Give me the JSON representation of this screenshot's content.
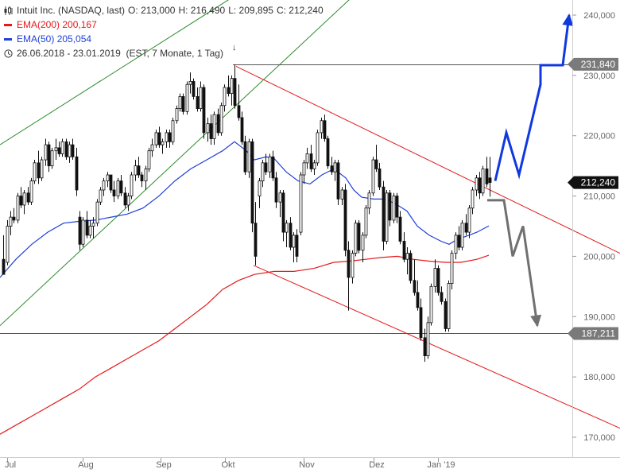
{
  "legend": {
    "title": "Intuit Inc. (NASDAQ, last)",
    "open_label": "O:",
    "open": "213,000",
    "high_label": "H:",
    "high": "216,490",
    "low_label": "L:",
    "low": "209,895",
    "close_label": "C:",
    "close": "212,240",
    "ema200_label": "EMA(200)",
    "ema200_value": "200,167",
    "ema50_label": "EMA(50)",
    "ema50_value": "205,054",
    "range": "26.06.2018 - 23.01.2019",
    "range_note": "(EST, 7 Monate, 1 Tag)",
    "range_marker": "↓",
    "chart_icon": "candlestick-icon",
    "clock_icon": "clock-icon"
  },
  "colors": {
    "ema200": "#e31a1c",
    "ema50": "#1f3fd8",
    "channel_upper": "#2e8b2e",
    "channel_down": "#e31a1c",
    "scenario_bull": "#1038e0",
    "scenario_bear": "#707070",
    "level_line": "#555555",
    "badge_dark": "#111111",
    "badge_gray": "#7a7a7a"
  },
  "chart_data": {
    "type": "candlestick",
    "title": "Intuit Inc. (NASDAQ, last)",
    "ylim": [
      165000,
      243000
    ],
    "yticks": [
      170000,
      180000,
      190000,
      200000,
      210000,
      220000,
      230000,
      240000
    ],
    "ytick_labels": [
      "170,000",
      "180,000",
      "190,000",
      "200,000",
      "210,000",
      "220,000",
      "230,000",
      "240,000"
    ],
    "xlim": [
      0,
      780
    ],
    "xticks": [
      {
        "label": "Jul",
        "x": 13
      },
      {
        "label": "Aug",
        "x": 108
      },
      {
        "label": "Sep",
        "x": 206
      },
      {
        "label": "Okt",
        "x": 287
      },
      {
        "label": "Nov",
        "x": 386
      },
      {
        "label": "Dez",
        "x": 474
      },
      {
        "label": "Jan '19",
        "x": 555
      }
    ],
    "price_badges": [
      {
        "label": "231,840",
        "value": 231840,
        "style": "gray"
      },
      {
        "label": "212,240",
        "value": 212240,
        "style": "dark"
      },
      {
        "label": "187,211",
        "value": 187211,
        "style": "gray"
      }
    ],
    "horizontal_levels": [
      {
        "value": 231840,
        "x_start": 293
      },
      {
        "value": 187211,
        "x_start": 0
      }
    ],
    "candles": [
      [
        4,
        199.5,
        203.5,
        198.0,
        197.0
      ],
      [
        9,
        199.0,
        206.0,
        198.5,
        205.0
      ],
      [
        13,
        205.0,
        207.5,
        203.5,
        206.5
      ],
      [
        17,
        206.5,
        208.0,
        205.5,
        206.0
      ],
      [
        22,
        206.0,
        210.5,
        205.5,
        210.0
      ],
      [
        26,
        210.0,
        211.5,
        208.0,
        208.5
      ],
      [
        30,
        208.5,
        211.0,
        207.0,
        210.5
      ],
      [
        35,
        210.5,
        211.5,
        208.5,
        209.0
      ],
      [
        39,
        209.0,
        213.0,
        208.5,
        212.5
      ],
      [
        43,
        212.5,
        216.0,
        212.0,
        215.5
      ],
      [
        48,
        215.5,
        217.5,
        212.0,
        213.0
      ],
      [
        52,
        213.0,
        216.5,
        212.5,
        216.0
      ],
      [
        57,
        216.0,
        219.5,
        215.0,
        218.5
      ],
      [
        61,
        218.5,
        219.0,
        214.0,
        215.0
      ],
      [
        65,
        215.0,
        218.0,
        214.5,
        217.5
      ],
      [
        70,
        217.5,
        219.5,
        216.0,
        218.0
      ],
      [
        74,
        218.0,
        219.0,
        216.5,
        217.0
      ],
      [
        78,
        217.0,
        219.5,
        216.5,
        219.0
      ],
      [
        83,
        219.0,
        219.5,
        216.0,
        216.5
      ],
      [
        87,
        216.5,
        219.0,
        215.5,
        218.5
      ],
      [
        91,
        218.5,
        219.5,
        216.0,
        216.5
      ],
      [
        96,
        216.5,
        218.0,
        210.0,
        211.0
      ],
      [
        100,
        206.5,
        207.5,
        201.0,
        202.0
      ],
      [
        104,
        202.0,
        206.5,
        201.5,
        206.0
      ],
      [
        109,
        206.0,
        207.5,
        203.0,
        203.5
      ],
      [
        113,
        203.5,
        206.0,
        203.0,
        205.0
      ],
      [
        117,
        205.0,
        206.5,
        203.0,
        205.5
      ],
      [
        122,
        205.5,
        209.5,
        205.0,
        209.0
      ],
      [
        126,
        209.0,
        211.5,
        208.5,
        211.0
      ],
      [
        130,
        211.0,
        213.0,
        210.0,
        212.5
      ],
      [
        135,
        212.5,
        214.0,
        211.5,
        213.5
      ],
      [
        139,
        213.5,
        213.5,
        210.5,
        211.0
      ],
      [
        143,
        211.0,
        212.5,
        209.0,
        210.0
      ],
      [
        148,
        210.0,
        213.0,
        209.5,
        212.5
      ],
      [
        152,
        212.5,
        213.5,
        210.0,
        210.5
      ],
      [
        157,
        210.5,
        211.5,
        208.0,
        208.5
      ],
      [
        161,
        208.5,
        210.5,
        207.5,
        210.0
      ],
      [
        165,
        210.0,
        214.0,
        209.5,
        213.5
      ],
      [
        170,
        213.5,
        216.0,
        212.5,
        215.0
      ],
      [
        174,
        215.0,
        216.5,
        213.0,
        213.5
      ],
      [
        178,
        213.5,
        214.0,
        211.5,
        212.5
      ],
      [
        183,
        212.5,
        215.0,
        211.0,
        214.5
      ],
      [
        187,
        214.5,
        218.0,
        214.0,
        217.5
      ],
      [
        191,
        217.5,
        219.5,
        216.5,
        218.5
      ],
      [
        196,
        218.5,
        221.0,
        218.0,
        220.5
      ],
      [
        200,
        220.5,
        221.5,
        218.0,
        218.5
      ],
      [
        204,
        218.5,
        219.5,
        217.0,
        219.0
      ],
      [
        209,
        219.0,
        221.0,
        218.0,
        220.5
      ],
      [
        213,
        220.5,
        221.0,
        218.0,
        219.0
      ],
      [
        217,
        219.0,
        223.0,
        218.5,
        222.5
      ],
      [
        222,
        222.5,
        225.0,
        222.0,
        224.5
      ],
      [
        226,
        224.5,
        227.0,
        224.0,
        226.5
      ],
      [
        230,
        226.5,
        227.0,
        223.5,
        224.0
      ],
      [
        235,
        224.0,
        229.0,
        223.5,
        228.5
      ],
      [
        239,
        228.5,
        230.5,
        227.0,
        229.0
      ],
      [
        243,
        229.0,
        229.5,
        226.0,
        226.5
      ],
      [
        248,
        226.5,
        228.0,
        224.0,
        224.5
      ],
      [
        252,
        224.5,
        229.0,
        224.0,
        228.0
      ],
      [
        256,
        228.0,
        228.5,
        219.5,
        220.5
      ],
      [
        261,
        220.5,
        223.0,
        219.0,
        222.0
      ],
      [
        265,
        222.0,
        223.5,
        218.5,
        219.5
      ],
      [
        269,
        219.5,
        224.0,
        218.5,
        223.5
      ],
      [
        274,
        223.5,
        224.5,
        220.0,
        220.5
      ],
      [
        278,
        220.5,
        225.5,
        220.0,
        225.0
      ],
      [
        282,
        225.0,
        228.5,
        224.0,
        228.0
      ],
      [
        287,
        228.0,
        230.0,
        226.5,
        227.0
      ],
      [
        291,
        227.0,
        230.0,
        225.0,
        229.5
      ],
      [
        295,
        229.5,
        231.8,
        224.5,
        225.0
      ],
      [
        300,
        225.0,
        228.5,
        222.5,
        223.0
      ],
      [
        304,
        223.0,
        224.0,
        218.5,
        219.0
      ],
      [
        308,
        219.0,
        220.0,
        213.5,
        214.0
      ],
      [
        313,
        214.0,
        219.5,
        213.0,
        219.0
      ],
      [
        317,
        219.0,
        219.5,
        204.0,
        205.5
      ],
      [
        321,
        205.5,
        209.0,
        198.5,
        200.0
      ],
      [
        326,
        210.0,
        213.0,
        208.0,
        212.5
      ],
      [
        330,
        212.5,
        216.0,
        211.5,
        215.5
      ],
      [
        334,
        215.5,
        217.0,
        213.5,
        214.0
      ],
      [
        339,
        214.0,
        217.0,
        213.0,
        216.5
      ],
      [
        343,
        216.5,
        217.5,
        212.5,
        213.0
      ],
      [
        347,
        213.0,
        214.0,
        208.0,
        209.0
      ],
      [
        352,
        209.0,
        211.0,
        206.5,
        210.5
      ],
      [
        356,
        210.5,
        211.0,
        202.5,
        204.0
      ],
      [
        360,
        204.0,
        206.0,
        201.5,
        205.5
      ],
      [
        365,
        205.5,
        206.5,
        201.0,
        201.5
      ],
      [
        369,
        201.5,
        204.0,
        199.0,
        203.5
      ],
      [
        373,
        203.5,
        204.5,
        199.0,
        200.0
      ],
      [
        378,
        204.0,
        214.0,
        203.5,
        213.5
      ],
      [
        382,
        213.5,
        216.0,
        212.0,
        215.5
      ],
      [
        386,
        215.5,
        218.0,
        214.5,
        217.0
      ],
      [
        391,
        217.0,
        218.5,
        214.0,
        214.5
      ],
      [
        395,
        214.5,
        216.0,
        213.5,
        215.5
      ],
      [
        399,
        215.5,
        221.0,
        215.0,
        220.5
      ],
      [
        404,
        220.5,
        223.0,
        219.5,
        222.5
      ],
      [
        408,
        222.5,
        223.5,
        219.0,
        219.5
      ],
      [
        412,
        219.5,
        220.0,
        214.5,
        215.0
      ],
      [
        417,
        215.0,
        216.5,
        213.5,
        214.0
      ],
      [
        421,
        214.0,
        216.0,
        212.5,
        215.5
      ],
      [
        425,
        215.5,
        216.0,
        208.5,
        209.5
      ],
      [
        430,
        209.5,
        211.5,
        208.5,
        211.0
      ],
      [
        434,
        211.0,
        212.0,
        200.0,
        201.0
      ],
      [
        438,
        201.0,
        202.5,
        191.0,
        196.5
      ],
      [
        443,
        196.5,
        201.0,
        195.5,
        200.5
      ],
      [
        447,
        200.5,
        206.0,
        200.0,
        205.5
      ],
      [
        451,
        205.5,
        206.0,
        200.5,
        201.0
      ],
      [
        456,
        201.0,
        204.0,
        199.0,
        203.5
      ],
      [
        460,
        203.5,
        208.5,
        203.0,
        208.0
      ],
      [
        464,
        208.0,
        211.0,
        207.0,
        210.5
      ],
      [
        469,
        210.5,
        216.5,
        210.0,
        216.0
      ],
      [
        473,
        216.0,
        218.5,
        214.0,
        214.5
      ],
      [
        477,
        214.5,
        215.5,
        211.0,
        211.5
      ],
      [
        482,
        211.5,
        212.5,
        201.0,
        202.5
      ],
      [
        486,
        202.5,
        211.0,
        202.0,
        210.5
      ],
      [
        490,
        210.5,
        211.0,
        205.0,
        206.0
      ],
      [
        495,
        206.0,
        210.5,
        205.5,
        210.0
      ],
      [
        499,
        210.0,
        210.5,
        205.5,
        206.5
      ],
      [
        503,
        206.5,
        207.5,
        202.0,
        202.5
      ],
      [
        508,
        202.5,
        204.0,
        199.0,
        199.5
      ],
      [
        512,
        199.5,
        201.5,
        197.0,
        200.5
      ],
      [
        516,
        200.5,
        201.0,
        195.5,
        196.0
      ],
      [
        521,
        196.0,
        199.5,
        193.5,
        194.0
      ],
      [
        525,
        194.0,
        196.0,
        191.0,
        191.5
      ],
      [
        529,
        191.5,
        193.0,
        186.0,
        186.5
      ],
      [
        534,
        186.5,
        188.0,
        182.5,
        183.5
      ],
      [
        538,
        183.5,
        190.0,
        183.0,
        189.0
      ],
      [
        542,
        189.0,
        195.5,
        188.5,
        195.0
      ],
      [
        547,
        195.0,
        199.5,
        194.0,
        198.0
      ],
      [
        551,
        198.0,
        198.5,
        193.5,
        194.0
      ],
      [
        555,
        194.0,
        195.0,
        192.0,
        192.5
      ],
      [
        560,
        192.5,
        193.0,
        187.5,
        188.0
      ],
      [
        564,
        188.0,
        196.0,
        187.5,
        195.5
      ],
      [
        568,
        195.5,
        201.0,
        194.5,
        200.5
      ],
      [
        573,
        200.5,
        204.0,
        199.5,
        203.5
      ],
      [
        577,
        203.5,
        205.0,
        201.0,
        201.5
      ],
      [
        581,
        201.5,
        206.0,
        201.0,
        205.5
      ],
      [
        586,
        205.5,
        207.0,
        203.5,
        204.0
      ],
      [
        590,
        204.0,
        208.5,
        203.0,
        208.0
      ],
      [
        594,
        208.0,
        211.5,
        207.0,
        211.0
      ],
      [
        599,
        211.0,
        213.5,
        210.0,
        213.0
      ],
      [
        603,
        213.0,
        214.0,
        209.5,
        210.5
      ],
      [
        607,
        210.5,
        215.0,
        210.0,
        214.5
      ],
      [
        612,
        214.5,
        216.5,
        211.5,
        212.0
      ],
      [
        616,
        213.0,
        216.49,
        209.9,
        212.24
      ]
    ],
    "ema50": [
      [
        0,
        196.5
      ],
      [
        20,
        199.5
      ],
      [
        40,
        202.0
      ],
      [
        60,
        204.0
      ],
      [
        80,
        205.5
      ],
      [
        100,
        205.8
      ],
      [
        120,
        206.0
      ],
      [
        140,
        206.5
      ],
      [
        160,
        207.0
      ],
      [
        180,
        208.0
      ],
      [
        200,
        210.0
      ],
      [
        220,
        212.5
      ],
      [
        240,
        214.5
      ],
      [
        260,
        216.0
      ],
      [
        280,
        217.5
      ],
      [
        295,
        219.0
      ],
      [
        310,
        217.5
      ],
      [
        320,
        216.0
      ],
      [
        335,
        216.5
      ],
      [
        345,
        216.2
      ],
      [
        360,
        214.0
      ],
      [
        375,
        212.5
      ],
      [
        390,
        212.0
      ],
      [
        405,
        213.5
      ],
      [
        420,
        214.5
      ],
      [
        435,
        213.0
      ],
      [
        445,
        211.0
      ],
      [
        455,
        209.8
      ],
      [
        470,
        209.5
      ],
      [
        485,
        209.5
      ],
      [
        500,
        208.5
      ],
      [
        512,
        207.5
      ],
      [
        525,
        205.0
      ],
      [
        540,
        203.5
      ],
      [
        555,
        202.5
      ],
      [
        565,
        202.0
      ],
      [
        575,
        202.8
      ],
      [
        590,
        203.5
      ],
      [
        600,
        204.0
      ],
      [
        615,
        205.05
      ]
    ],
    "ema200": [
      [
        0,
        170.5
      ],
      [
        20,
        172.0
      ],
      [
        40,
        173.5
      ],
      [
        60,
        175.0
      ],
      [
        80,
        176.5
      ],
      [
        100,
        178.0
      ],
      [
        120,
        180.0
      ],
      [
        140,
        181.5
      ],
      [
        160,
        183.0
      ],
      [
        180,
        184.5
      ],
      [
        200,
        186.0
      ],
      [
        220,
        188.0
      ],
      [
        240,
        190.0
      ],
      [
        260,
        192.0
      ],
      [
        280,
        194.5
      ],
      [
        300,
        196.0
      ],
      [
        320,
        197.0
      ],
      [
        345,
        197.5
      ],
      [
        370,
        197.5
      ],
      [
        395,
        198.0
      ],
      [
        420,
        199.0
      ],
      [
        440,
        199.2
      ],
      [
        460,
        199.5
      ],
      [
        480,
        199.8
      ],
      [
        500,
        200.0
      ],
      [
        520,
        199.5
      ],
      [
        540,
        199.2
      ],
      [
        560,
        199.0
      ],
      [
        580,
        199.0
      ],
      [
        600,
        199.5
      ],
      [
        615,
        200.17
      ]
    ],
    "channel_upper_lines": [
      [
        [
          0,
          218.5
        ],
        [
          293,
          243.0
        ]
      ],
      [
        [
          0,
          188.5
        ],
        [
          443,
          243.0
        ]
      ]
    ],
    "downtrend_lines": [
      [
        [
          297,
          231.5
        ],
        [
          780,
          200.5
        ]
      ],
      [
        [
          319,
          198.5
        ],
        [
          780,
          171.5
        ]
      ]
    ],
    "scenario_bull": [
      [
        623,
        212.5
      ],
      [
        637,
        220.5
      ],
      [
        653,
        213.5
      ],
      [
        680,
        228.5
      ],
      [
        680,
        231.7
      ],
      [
        708,
        231.7
      ],
      [
        716,
        240.0
      ]
    ],
    "scenario_bear": [
      [
        613,
        209.3
      ],
      [
        634,
        209.3
      ],
      [
        645,
        200.0
      ],
      [
        658,
        205.0
      ],
      [
        676,
        188.5
      ]
    ]
  }
}
